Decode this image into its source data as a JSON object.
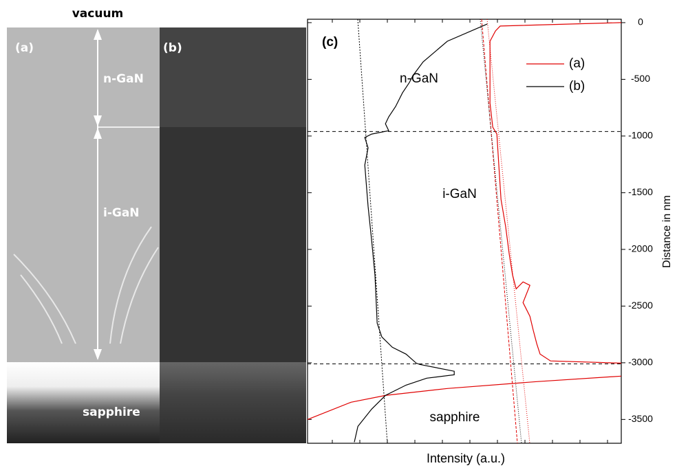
{
  "micrograph": {
    "top_label": "vacuum",
    "panel_a": "(a)",
    "panel_b": "(b)",
    "layer_1": "n-GaN",
    "layer_2": "i-GaN",
    "substrate": "sapphire"
  },
  "chart_data": {
    "type": "line",
    "panel": "(c)",
    "x_label": "Intensity (a.u.)",
    "y_label": "Distance in nm",
    "annotations": [
      "n-GaN",
      "i-GaN",
      "sapphire"
    ],
    "xlim": [
      0,
      11.4
    ],
    "ylim": [
      -3710,
      30
    ],
    "yticks": [
      0,
      -500,
      -1000,
      -1500,
      -2000,
      -2500,
      -3000,
      -3500
    ],
    "hlines": [
      -960,
      -3010
    ],
    "legend": "top-right",
    "series": [
      {
        "name": "(a)",
        "color": "#e00000",
        "x": [
          11.4,
          7.0,
          6.83,
          6.63,
          6.63,
          6.73,
          6.88,
          6.95,
          7.03,
          7.2,
          7.33,
          7.45,
          7.58,
          7.83,
          8.08,
          7.83,
          8.08,
          8.2,
          8.33,
          8.45,
          8.83,
          11.4,
          null,
          0,
          1.58,
          2.83,
          5.08,
          8.33,
          11.4
        ],
        "values": [
          0,
          -30,
          -73,
          -164,
          -710,
          -922,
          -983,
          -1256,
          -1559,
          -1802,
          -2044,
          -2226,
          -2348,
          -2287,
          -2317,
          -2469,
          -2590,
          -2712,
          -2833,
          -2924,
          -2984,
          -3003,
          null,
          -3500,
          -3348,
          -3288,
          -3227,
          -3166,
          -3118
        ]
      },
      {
        "name": "(b)",
        "color": "#000000",
        "x": [
          6.53,
          5.08,
          4.2,
          3.83,
          3.7,
          3.45,
          3.2,
          2.95,
          2.83,
          2.95,
          2.33,
          2.08,
          2.2,
          2.08,
          2.2,
          2.33,
          2.45,
          2.53,
          2.7,
          3.08,
          3.58,
          3.95,
          4.08,
          5.33,
          5.33,
          4.33,
          3.58,
          2.83,
          2.33,
          1.83,
          1.7
        ],
        "values": [
          -12,
          -164,
          -346,
          -467,
          -528,
          -619,
          -740,
          -831,
          -892,
          -953,
          -983,
          -1013,
          -1104,
          -1256,
          -1620,
          -1923,
          -2226,
          -2651,
          -2772,
          -2863,
          -2924,
          -3003,
          -3015,
          -3075,
          -3106,
          -3136,
          -3197,
          -3288,
          -3409,
          -3561,
          -3700
        ]
      }
    ]
  }
}
